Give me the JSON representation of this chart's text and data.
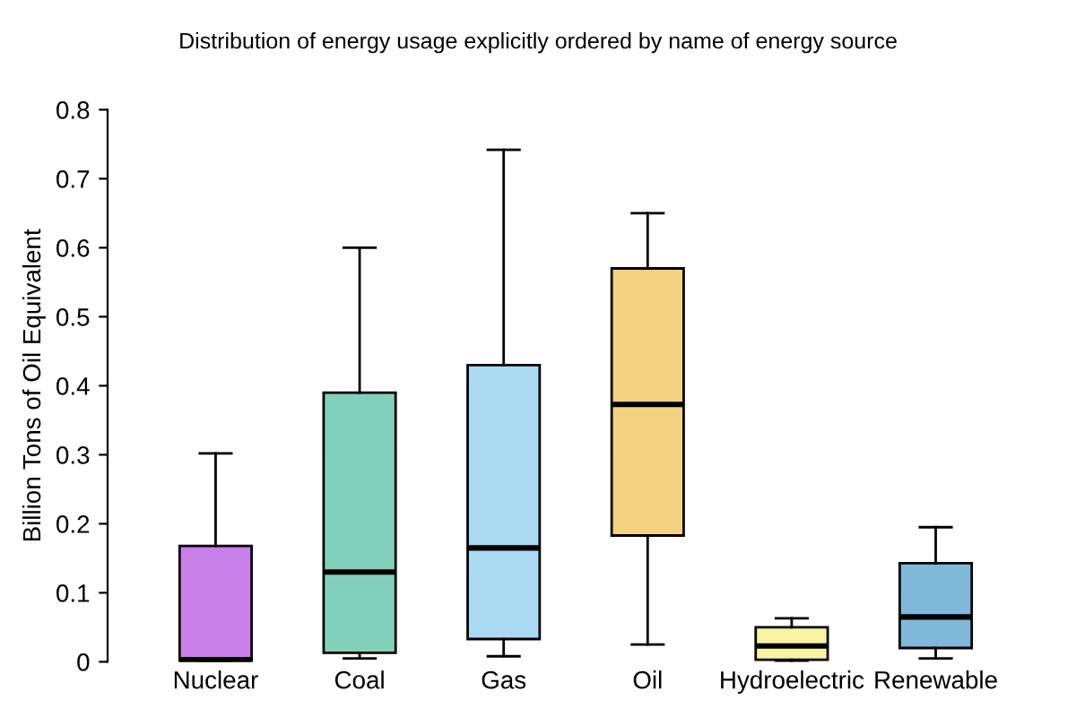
{
  "chart_data": {
    "type": "box",
    "title": "Distribution of energy usage explicitly ordered by name of energy source",
    "ylabel": "Billion Tons of Oil Equivalent",
    "categories": [
      "Nuclear",
      "Coal",
      "Gas",
      "Oil",
      "Hydroelectric",
      "Renewable"
    ],
    "colors": [
      "#c97fe8",
      "#82d0b9",
      "#acd9f2",
      "#f2d180",
      "#f8f3a0",
      "#7fb8d8"
    ],
    "boxes": [
      {
        "low": 0,
        "q1": 0,
        "median": 0.003,
        "q3": 0.168,
        "high": 0.302
      },
      {
        "low": 0.005,
        "q1": 0.013,
        "median": 0.13,
        "q3": 0.39,
        "high": 0.6
      },
      {
        "low": 0.008,
        "q1": 0.033,
        "median": 0.165,
        "q3": 0.43,
        "high": 0.742
      },
      {
        "low": 0.025,
        "q1": 0.183,
        "median": 0.373,
        "q3": 0.57,
        "high": 0.65
      },
      {
        "low": 0.001,
        "q1": 0.003,
        "median": 0.023,
        "q3": 0.05,
        "high": 0.063
      },
      {
        "low": 0.005,
        "q1": 0.02,
        "median": 0.065,
        "q3": 0.143,
        "high": 0.195
      }
    ],
    "ylim": [
      0,
      0.8
    ],
    "yticks": [
      0,
      0.1,
      0.2,
      0.3,
      0.4,
      0.5,
      0.6,
      0.7,
      0.8
    ],
    "grid": false,
    "legend": false
  }
}
